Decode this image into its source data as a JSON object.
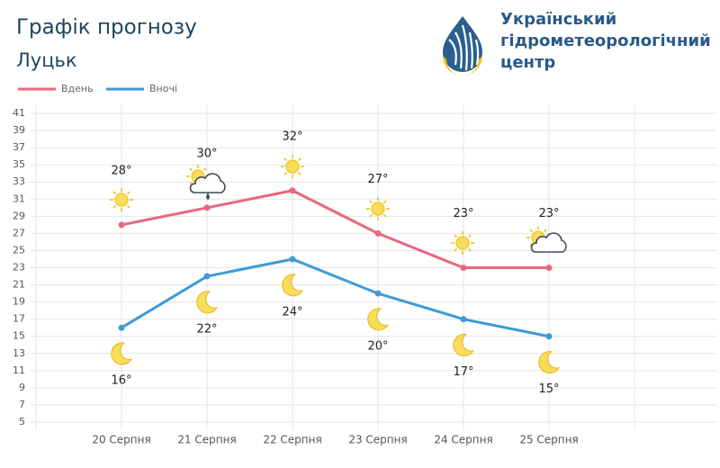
{
  "header": {
    "org": [
      "Український",
      "гідрометеорологічний",
      "центр"
    ]
  },
  "chart_data": {
    "type": "line",
    "title": "Графік прогнозу",
    "subtitle": "Луцьк",
    "categories": [
      "20 Серпня",
      "21 Серпня",
      "22 Серпня",
      "23 Серпня",
      "24 Серпня",
      "25 Серпня"
    ],
    "series": [
      {
        "name": "Вдень",
        "color": "#e8687f",
        "values": [
          28,
          30,
          32,
          27,
          23,
          23
        ],
        "value_labels": [
          "28°",
          "30°",
          "32°",
          "27°",
          "23°",
          "23°"
        ]
      },
      {
        "name": "Вночі",
        "color": "#3e9bd8",
        "values": [
          16,
          22,
          24,
          20,
          17,
          15
        ],
        "value_labels": [
          "16°",
          "22°",
          "24°",
          "20°",
          "17°",
          "15°"
        ]
      }
    ],
    "ylim": [
      5,
      41
    ],
    "yticks": [
      5,
      7,
      9,
      11,
      13,
      15,
      17,
      19,
      21,
      23,
      25,
      27,
      29,
      31,
      33,
      35,
      37,
      39,
      41
    ],
    "grid": true,
    "legend": "top-left"
  }
}
